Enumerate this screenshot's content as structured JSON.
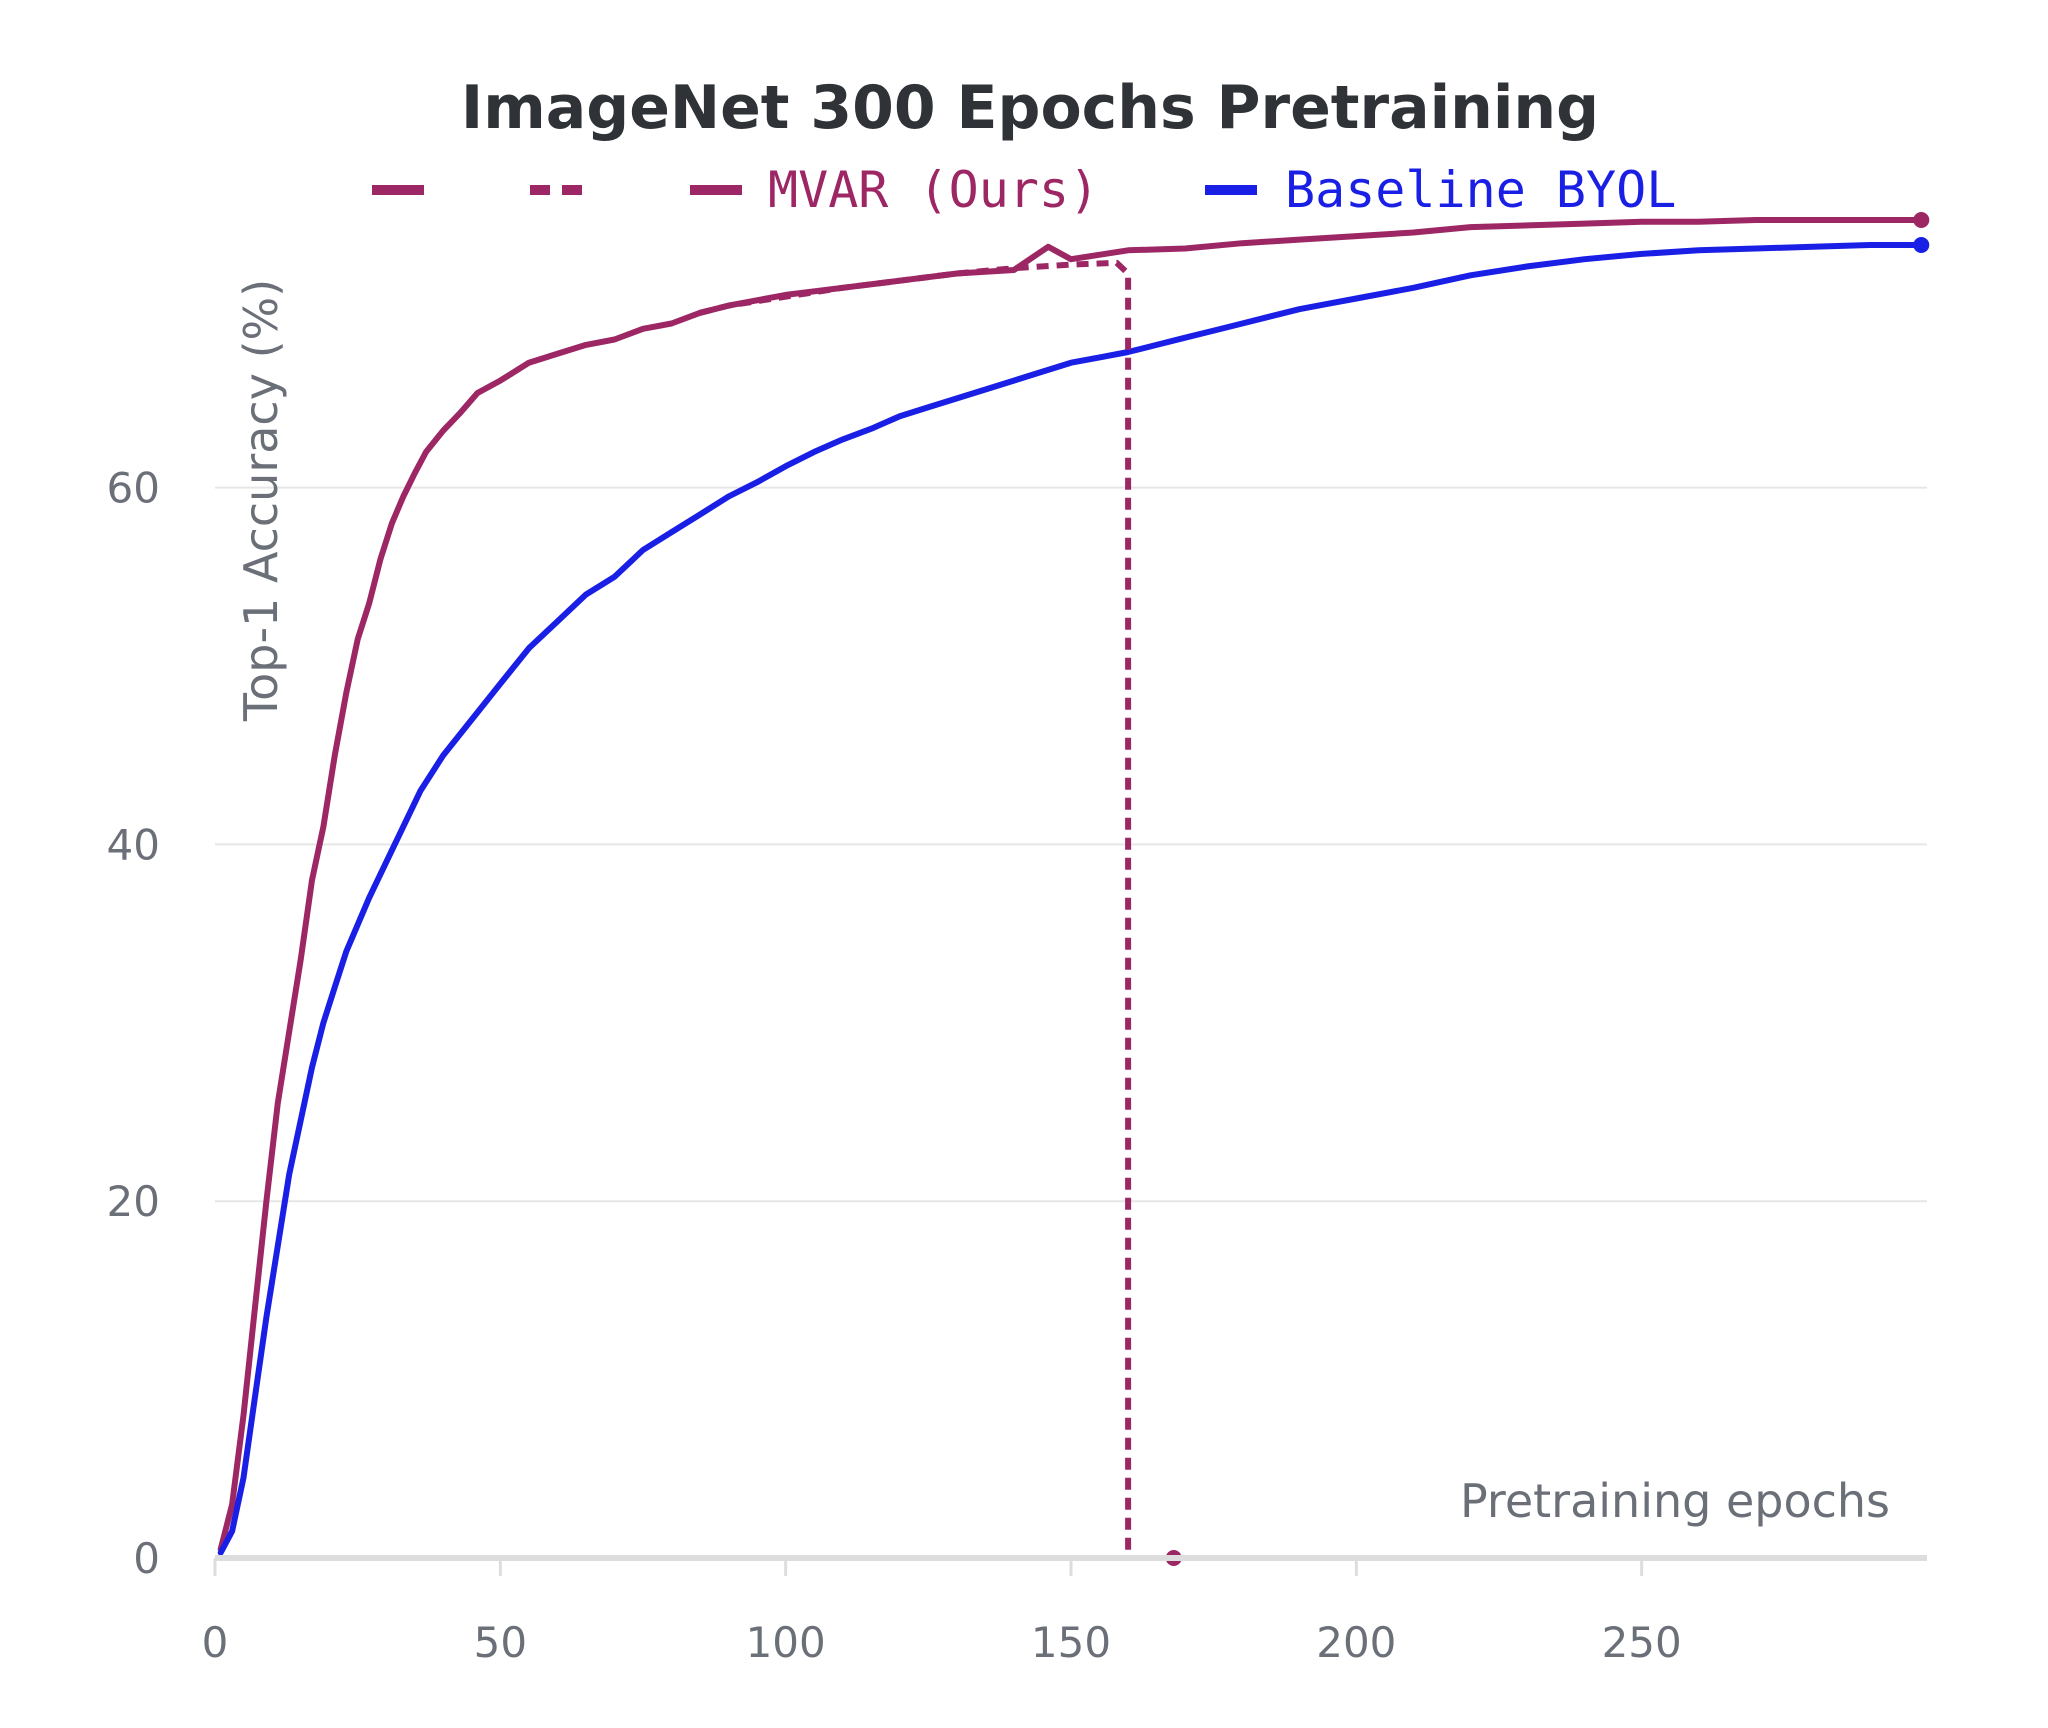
{
  "chart_data": {
    "type": "line",
    "title": "ImageNet 300 Epochs Pretraining",
    "xlabel": "Pretraining epochs",
    "ylabel": "Top-1 Accuracy (%)",
    "xlim": [
      0,
      300
    ],
    "ylim": [
      0,
      75
    ],
    "xticks": [
      0,
      50,
      100,
      150,
      200,
      250
    ],
    "yticks": [
      0,
      20,
      40,
      60
    ],
    "grid": true,
    "legend_position": "top",
    "series": [
      {
        "name": "",
        "legend_style": "long-dash",
        "style": "solid",
        "color": "#9c2764",
        "x": [
          1,
          3,
          5,
          7,
          9,
          11,
          13,
          15,
          17,
          19,
          21,
          23,
          25,
          27,
          29,
          31,
          33,
          35,
          37,
          40,
          43,
          46,
          50,
          55,
          60,
          65,
          70,
          75,
          80,
          85,
          90,
          100,
          110,
          120,
          130,
          140,
          146,
          150,
          160,
          170,
          180,
          190,
          200,
          210,
          220,
          230,
          240,
          250,
          260,
          270,
          280,
          290,
          299
        ],
        "y": [
          0.5,
          3,
          8,
          14,
          20,
          25.5,
          29.5,
          33.5,
          38,
          41,
          45,
          48.5,
          51.5,
          53.5,
          56,
          58,
          59.5,
          60.8,
          62,
          63.2,
          64.2,
          65.3,
          66,
          67,
          67.5,
          68,
          68.3,
          68.9,
          69.2,
          69.8,
          70.2,
          70.8,
          71.2,
          71.6,
          72,
          72.2,
          73.5,
          72.8,
          73.3,
          73.4,
          73.7,
          73.9,
          74.1,
          74.3,
          74.6,
          74.7,
          74.8,
          74.9,
          74.9,
          75,
          75,
          75,
          75
        ]
      },
      {
        "name": "",
        "legend_style": "short-dash",
        "style": "dashed",
        "color": "#9c2764",
        "x": [
          85,
          90,
          100,
          110,
          120,
          130,
          140,
          150,
          158,
          160,
          160,
          168
        ],
        "y": [
          69.8,
          70.2,
          70.7,
          71.2,
          71.6,
          72,
          72.3,
          72.5,
          72.6,
          72,
          0,
          0
        ]
      },
      {
        "name": "MVAR (Ours)",
        "legend_style": "long-dash",
        "style": "solid",
        "color": "#9c2764",
        "x": [],
        "y": []
      },
      {
        "name": "Baseline BYOL",
        "legend_style": "solid",
        "style": "solid",
        "color": "#1a1fe6",
        "x": [
          1,
          3,
          5,
          7,
          9,
          11,
          13,
          15,
          17,
          19,
          21,
          23,
          25,
          27,
          30,
          33,
          36,
          40,
          45,
          50,
          55,
          60,
          65,
          70,
          75,
          80,
          85,
          90,
          95,
          100,
          105,
          110,
          115,
          120,
          125,
          130,
          135,
          140,
          145,
          150,
          155,
          160,
          165,
          170,
          175,
          180,
          185,
          190,
          195,
          200,
          210,
          220,
          230,
          240,
          250,
          260,
          270,
          280,
          290,
          299
        ],
        "y": [
          0.3,
          1.5,
          4.5,
          9,
          13.5,
          17.5,
          21.5,
          24.5,
          27.5,
          30,
          32,
          34,
          35.5,
          37,
          39,
          41,
          43,
          45,
          47,
          49,
          51,
          52.5,
          54,
          55,
          56.5,
          57.5,
          58.5,
          59.5,
          60.3,
          61.2,
          62,
          62.7,
          63.3,
          64,
          64.5,
          65,
          65.5,
          66,
          66.5,
          67,
          67.3,
          67.6,
          68,
          68.4,
          68.8,
          69.2,
          69.6,
          70,
          70.3,
          70.6,
          71.2,
          71.9,
          72.4,
          72.8,
          73.1,
          73.3,
          73.4,
          73.5,
          73.6,
          73.6
        ]
      }
    ]
  }
}
